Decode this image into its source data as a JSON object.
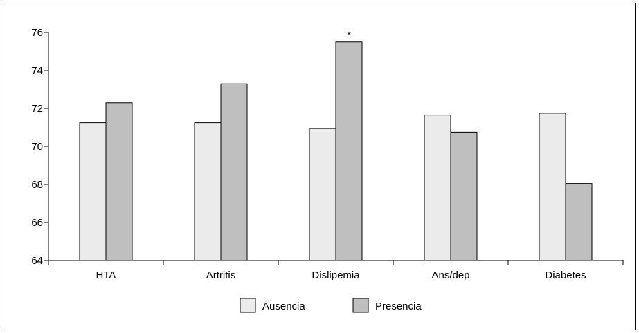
{
  "chart_data": {
    "type": "bar",
    "categories": [
      "HTA",
      "Artritis",
      "Dislipemia",
      "Ans/dep",
      "Diabetes"
    ],
    "series": [
      {
        "name": "Ausencia",
        "values": [
          71.25,
          71.25,
          70.95,
          71.65,
          71.75
        ],
        "color": "#ebebeb"
      },
      {
        "name": "Presencia",
        "values": [
          72.3,
          73.3,
          75.5,
          70.75,
          68.05
        ],
        "color": "#bfbfbf"
      }
    ],
    "title": "",
    "xlabel": "",
    "ylabel": "",
    "ylim": [
      64,
      76
    ],
    "yticks": [
      64,
      66,
      68,
      70,
      72,
      74,
      76
    ],
    "ytick_labels": [
      "64",
      "66",
      "68",
      "70",
      "72",
      "74",
      "76"
    ],
    "annotations": [
      {
        "category": "Dislipemia",
        "series": "Presencia",
        "text": "*"
      }
    ],
    "grid": false,
    "legend": {
      "position": "bottom-center",
      "entries": [
        "Ausencia",
        "Presencia"
      ]
    }
  }
}
